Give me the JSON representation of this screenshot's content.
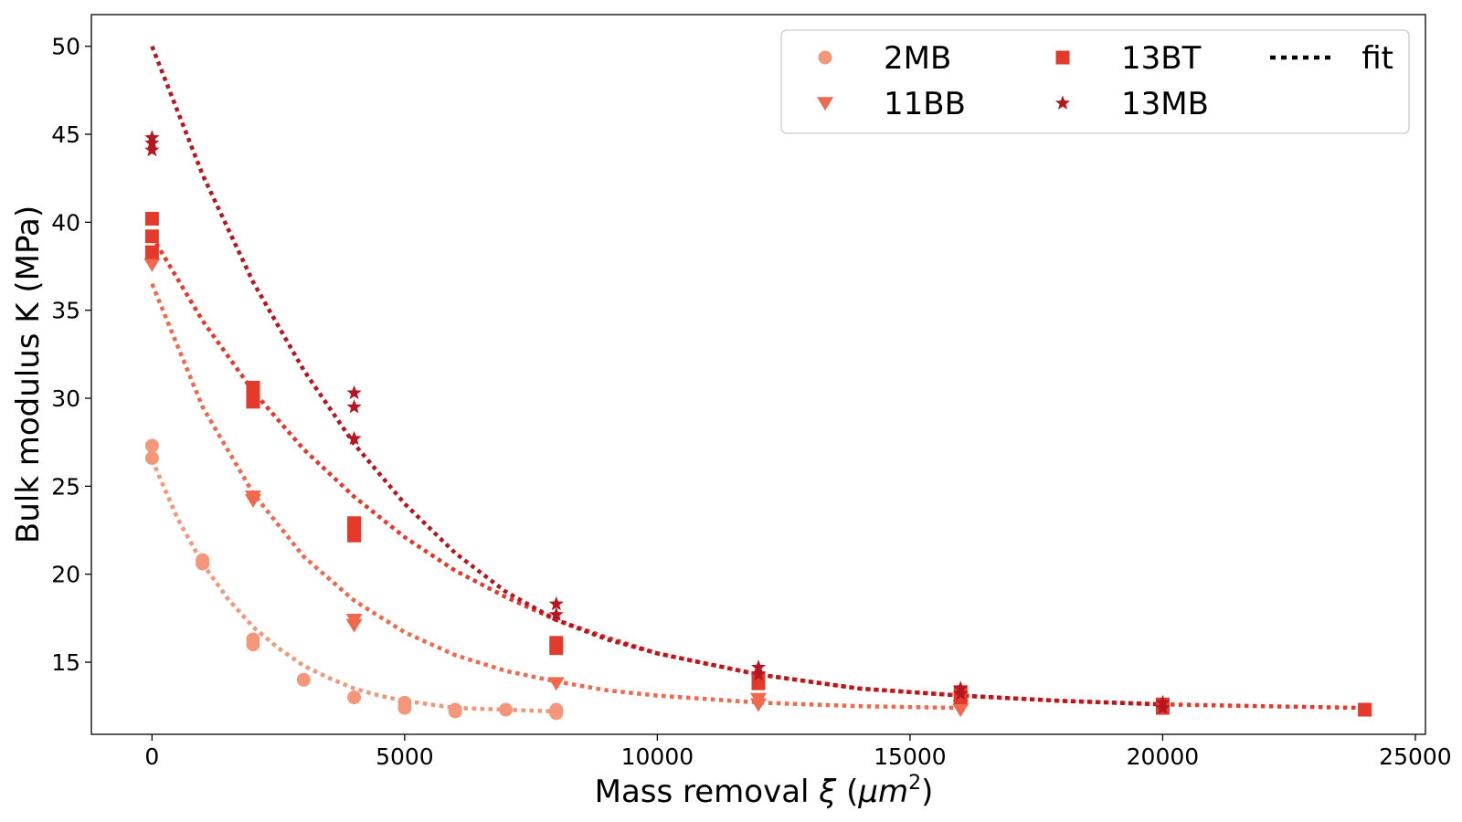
{
  "chart_data": {
    "type": "scatter",
    "xlabel_main": "Mass removal ",
    "xlabel_symbol": "ξ",
    "xlabel_unit_open": " (",
    "xlabel_unit": "μm",
    "xlabel_sup": "2",
    "xlabel_unit_close": ")",
    "ylabel": "Bulk modulus K (MPa)",
    "xlim": [
      -1200,
      25200
    ],
    "ylim": [
      10.9,
      51.8
    ],
    "xticks": [
      0,
      5000,
      10000,
      15000,
      20000,
      25000
    ],
    "yticks": [
      15,
      20,
      25,
      30,
      35,
      40,
      45,
      50
    ],
    "grid": false,
    "legend_position": "top-right",
    "legend_ncol": 3,
    "fit_label": "fit",
    "fit_color": "#000000",
    "series": [
      {
        "name": "2MB",
        "marker": "circle",
        "color": "#f4967a",
        "points": [
          [
            0,
            27.3
          ],
          [
            0,
            26.6
          ],
          [
            1000,
            20.8
          ],
          [
            1000,
            20.6
          ],
          [
            2000,
            16.3
          ],
          [
            2000,
            16.0
          ],
          [
            3000,
            14.0
          ],
          [
            4000,
            13.0
          ],
          [
            5000,
            12.7
          ],
          [
            5000,
            12.4
          ],
          [
            6000,
            12.3
          ],
          [
            6000,
            12.2
          ],
          [
            7000,
            12.3
          ],
          [
            8000,
            12.3
          ],
          [
            8000,
            12.1
          ]
        ],
        "fit": {
          "color": "#f4967a",
          "x_end": 8000,
          "points": [
            [
              0,
              26.5
            ],
            [
              500,
              23.2
            ],
            [
              1000,
              20.6
            ],
            [
              1500,
              18.6
            ],
            [
              2000,
              17.0
            ],
            [
              2500,
              15.8
            ],
            [
              3000,
              14.8
            ],
            [
              3500,
              14.1
            ],
            [
              4000,
              13.5
            ],
            [
              4500,
              13.1
            ],
            [
              5000,
              12.8
            ],
            [
              5500,
              12.6
            ],
            [
              6000,
              12.4
            ],
            [
              7000,
              12.3
            ],
            [
              8000,
              12.2
            ]
          ]
        }
      },
      {
        "name": "11BB",
        "marker": "triangle-down",
        "color": "#f0694c",
        "points": [
          [
            0,
            37.6
          ],
          [
            2000,
            24.4
          ],
          [
            2000,
            24.2
          ],
          [
            4000,
            17.4
          ],
          [
            4000,
            17.1
          ],
          [
            8000,
            13.8
          ],
          [
            12000,
            12.9
          ],
          [
            12000,
            12.6
          ],
          [
            16000,
            12.5
          ],
          [
            16000,
            12.3
          ]
        ],
        "fit": {
          "color": "#f0694c",
          "x_end": 16000,
          "points": [
            [
              0,
              36.5
            ],
            [
              1000,
              29.5
            ],
            [
              2000,
              24.6
            ],
            [
              3000,
              21.0
            ],
            [
              4000,
              18.5
            ],
            [
              5000,
              16.7
            ],
            [
              6000,
              15.4
            ],
            [
              7000,
              14.5
            ],
            [
              8000,
              13.9
            ],
            [
              9000,
              13.4
            ],
            [
              10000,
              13.1
            ],
            [
              12000,
              12.7
            ],
            [
              14000,
              12.5
            ],
            [
              16000,
              12.4
            ]
          ]
        }
      },
      {
        "name": "13BT",
        "marker": "square",
        "color": "#e33a2b",
        "points": [
          [
            0,
            40.2
          ],
          [
            0,
            39.2
          ],
          [
            0,
            38.3
          ],
          [
            2000,
            30.6
          ],
          [
            2000,
            30.2
          ],
          [
            2000,
            29.8
          ],
          [
            4000,
            22.9
          ],
          [
            4000,
            22.6
          ],
          [
            4000,
            22.2
          ],
          [
            8000,
            16.1
          ],
          [
            8000,
            15.8
          ],
          [
            12000,
            14.1
          ],
          [
            12000,
            13.8
          ],
          [
            16000,
            13.3
          ],
          [
            16000,
            13.0
          ],
          [
            20000,
            12.6
          ],
          [
            20000,
            12.4
          ],
          [
            24000,
            12.3
          ]
        ],
        "fit": {
          "color": "#e33a2b",
          "x_end": 24000,
          "points": [
            [
              0,
              39.2
            ],
            [
              1000,
              34.4
            ],
            [
              2000,
              30.4
            ],
            [
              3000,
              27.1
            ],
            [
              4000,
              24.4
            ],
            [
              5000,
              22.1
            ],
            [
              6000,
              20.2
            ],
            [
              7000,
              18.7
            ],
            [
              8000,
              17.4
            ],
            [
              9000,
              16.4
            ],
            [
              10000,
              15.5
            ],
            [
              12000,
              14.3
            ],
            [
              14000,
              13.5
            ],
            [
              16000,
              13.1
            ],
            [
              18000,
              12.8
            ],
            [
              20000,
              12.6
            ],
            [
              22000,
              12.5
            ],
            [
              24000,
              12.4
            ]
          ]
        }
      },
      {
        "name": "13MB",
        "marker": "star",
        "color": "#b5161f",
        "points": [
          [
            0,
            44.8
          ],
          [
            0,
            44.5
          ],
          [
            0,
            44.1
          ],
          [
            4000,
            30.3
          ],
          [
            4000,
            29.5
          ],
          [
            4000,
            27.7
          ],
          [
            8000,
            18.3
          ],
          [
            8000,
            17.7
          ],
          [
            12000,
            14.7
          ],
          [
            12000,
            14.3
          ],
          [
            16000,
            13.5
          ],
          [
            16000,
            13.2
          ],
          [
            20000,
            12.7
          ],
          [
            20000,
            12.4
          ]
        ],
        "fit": {
          "color": "#b5161f",
          "x_end": 20000,
          "points": [
            [
              0,
              50.0
            ],
            [
              1000,
              42.7
            ],
            [
              2000,
              36.6
            ],
            [
              3000,
              31.6
            ],
            [
              4000,
              27.4
            ],
            [
              5000,
              24.0
            ],
            [
              6000,
              21.2
            ],
            [
              7000,
              19.0
            ],
            [
              8000,
              17.4
            ],
            [
              9000,
              16.3
            ],
            [
              10000,
              15.5
            ],
            [
              12000,
              14.3
            ],
            [
              14000,
              13.5
            ],
            [
              16000,
              13.1
            ],
            [
              18000,
              12.8
            ],
            [
              20000,
              12.6
            ]
          ]
        }
      }
    ]
  }
}
